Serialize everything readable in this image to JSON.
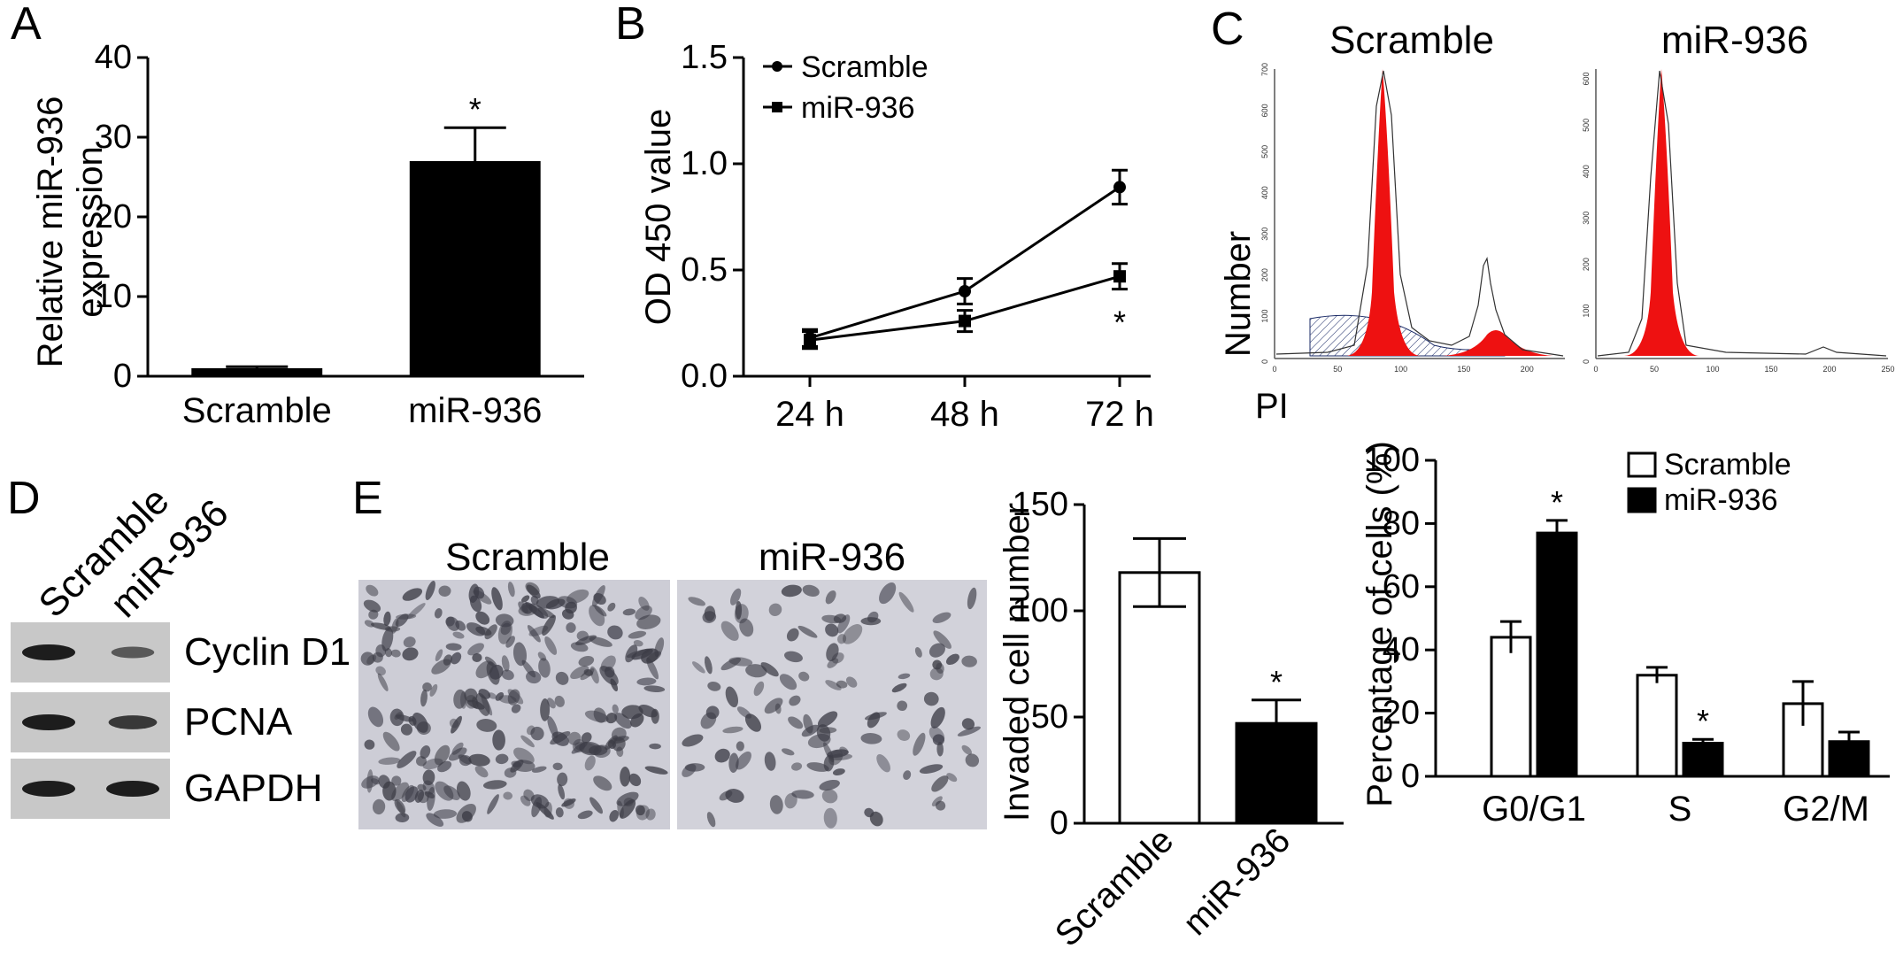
{
  "panels": {
    "A": "A",
    "B": "B",
    "C": "C",
    "D": "D",
    "E": "E"
  },
  "colors": {
    "bar": "#000000",
    "flow_fill": "#ee1111",
    "hatch": "#1a2a66"
  },
  "western_blot": {
    "lane_labels": [
      "Scramble",
      "miR-936"
    ],
    "bands": [
      {
        "label": "Cyclin D1",
        "intensity": [
          1.0,
          0.45
        ]
      },
      {
        "label": "PCNA",
        "intensity": [
          1.0,
          0.75
        ]
      },
      {
        "label": "GAPDH",
        "intensity": [
          1.0,
          1.0
        ]
      }
    ]
  },
  "flow": {
    "titles": [
      "Scramble",
      "miR-936"
    ],
    "xlabel": "PI",
    "ylabel": "Number",
    "ticks_left_x": [
      "0",
      "50",
      "100",
      "150",
      "200"
    ],
    "ticks_right_x": [
      "0",
      "50",
      "100",
      "150",
      "200",
      "250"
    ],
    "ticks_left_y": [
      "0",
      "100",
      "200",
      "300",
      "400",
      "500",
      "600",
      "700"
    ],
    "ticks_right_y": [
      "0",
      "100",
      "200",
      "300",
      "400",
      "500",
      "600"
    ]
  },
  "invasion": {
    "image_labels": [
      "Scramble",
      "miR-936"
    ]
  },
  "chart_data": [
    {
      "panel": "A",
      "type": "bar",
      "categories": [
        "Scramble",
        "miR-936"
      ],
      "values": [
        1,
        27
      ],
      "errors": [
        0.2,
        4.2
      ],
      "significance": [
        "",
        "*"
      ],
      "ylabel": [
        "Relative miR-936",
        "expression"
      ],
      "ylim": [
        0,
        40
      ],
      "yticks": [
        "0",
        "10",
        "20",
        "30",
        "40"
      ]
    },
    {
      "panel": "B",
      "type": "line",
      "x": [
        "24 h",
        "48 h",
        "72 h"
      ],
      "series": [
        {
          "name": "Scramble",
          "values": [
            0.18,
            0.4,
            0.89
          ],
          "errors": [
            0.04,
            0.06,
            0.08
          ]
        },
        {
          "name": "miR-936",
          "values": [
            0.17,
            0.26,
            0.47
          ],
          "errors": [
            0.04,
            0.05,
            0.06
          ]
        }
      ],
      "significance": [
        "",
        "",
        "*"
      ],
      "ylabel": "OD 450 value",
      "ylim": [
        0,
        1.5
      ],
      "yticks": [
        "0.0",
        "0.5",
        "1.0",
        "1.5"
      ]
    },
    {
      "panel": "E",
      "type": "bar",
      "categories": [
        "Scramble",
        "miR-936"
      ],
      "values": [
        118,
        47
      ],
      "errors": [
        16,
        11
      ],
      "fills": [
        "white",
        "black"
      ],
      "significance": [
        "",
        "*"
      ],
      "ylabel": "Invaded cell number",
      "ylim": [
        0,
        150
      ],
      "yticks": [
        "0",
        "50",
        "100",
        "150"
      ]
    },
    {
      "panel": "C",
      "type": "bar",
      "categories": [
        "G0/G1",
        "S",
        "G2/M"
      ],
      "series": [
        {
          "name": "Scramble",
          "values": [
            44,
            32,
            23
          ],
          "errors": [
            5,
            2.5,
            7
          ]
        },
        {
          "name": "miR-936",
          "values": [
            77,
            10.5,
            11
          ],
          "errors": [
            4,
            1.2,
            3
          ]
        }
      ],
      "significance": [
        [
          "",
          "*"
        ],
        [
          "",
          "*"
        ],
        [
          "",
          ""
        ]
      ],
      "ylabel": "Percentage of cells (%)",
      "ylim": [
        0,
        100
      ],
      "yticks": [
        "0",
        "20",
        "40",
        "60",
        "80",
        "100"
      ]
    }
  ]
}
